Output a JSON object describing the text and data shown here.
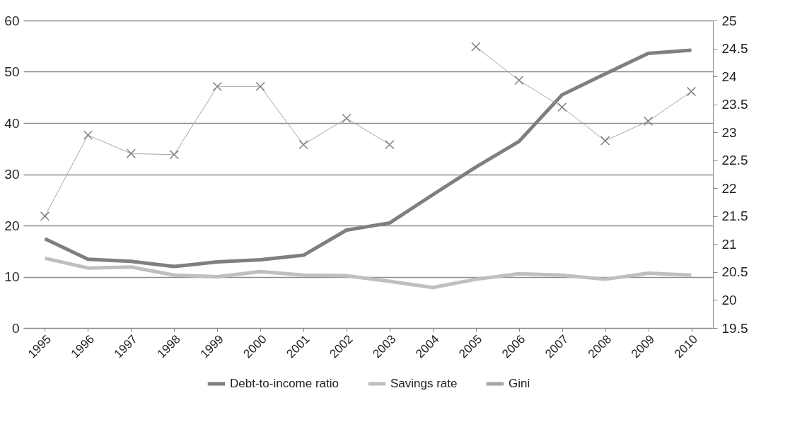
{
  "chart_data": {
    "type": "line",
    "categories": [
      "1995",
      "1996",
      "1997",
      "1998",
      "1999",
      "2000",
      "2001",
      "2002",
      "2003",
      "2004",
      "2005",
      "2006",
      "2007",
      "2008",
      "2009",
      "2010"
    ],
    "series": [
      {
        "name": "Debt-to-income ratio",
        "color": "#7f7f7f",
        "marker": "none",
        "values": [
          17.4,
          13.4,
          13.0,
          12.0,
          12.9,
          13.3,
          14.2,
          19.1,
          20.5,
          26.0,
          31.4,
          36.4,
          45.5,
          49.6,
          53.6,
          54.2
        ]
      },
      {
        "name": "Savings rate",
        "color": "#bfbfbf",
        "marker": "none",
        "values": [
          13.6,
          11.7,
          11.9,
          10.3,
          10.0,
          11.0,
          10.3,
          10.2,
          9.1,
          7.9,
          9.5,
          10.6,
          10.3,
          9.5,
          10.7,
          10.3
        ]
      },
      {
        "name": "Gini",
        "color": "#a6a6a6",
        "marker": "cross",
        "axis": "y2",
        "values": [
          21.5,
          22.95,
          22.62,
          22.6,
          23.82,
          23.82,
          22.78,
          23.25,
          22.78,
          null,
          24.53,
          23.93,
          23.45,
          22.85,
          23.2,
          23.73
        ]
      }
    ],
    "ylim": [
      0,
      60
    ],
    "yticks": [
      0,
      10,
      20,
      30,
      40,
      50,
      60
    ],
    "y2lim": [
      19.5,
      25
    ],
    "y2ticks": [
      19.5,
      20,
      20.5,
      21,
      21.5,
      22,
      22.5,
      23,
      23.5,
      24,
      24.5,
      25
    ],
    "grid": "y",
    "legend": "bottom"
  }
}
